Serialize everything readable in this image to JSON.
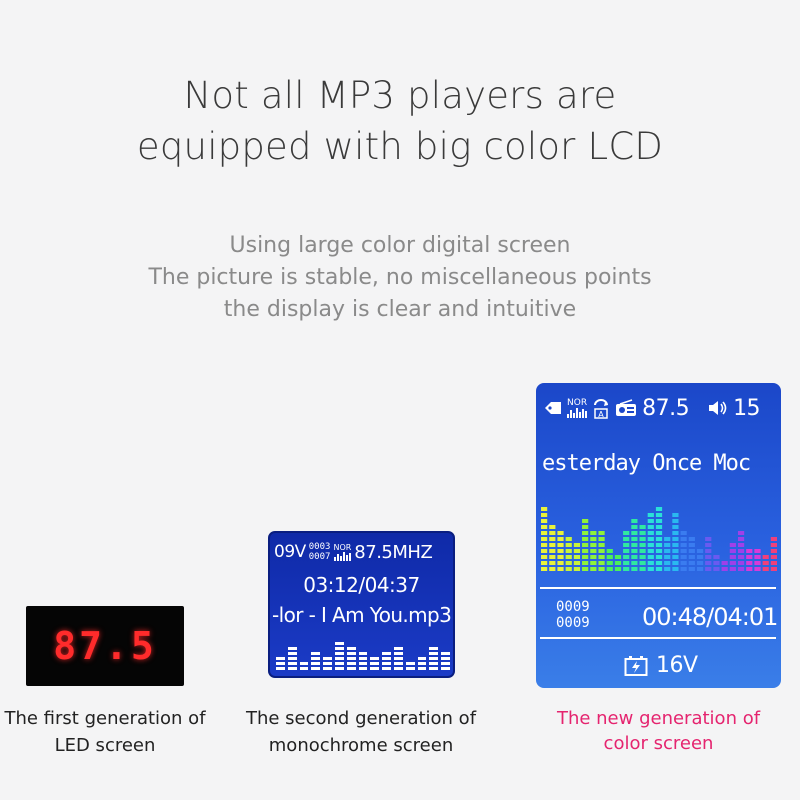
{
  "headline": {
    "line1": "Not all MP3 players are",
    "line2": "equipped with big color LCD"
  },
  "subtitle": {
    "line1": "Using large color digital screen",
    "line2": "The picture is stable, no miscellaneous points",
    "line3": "the display is clear and intuitive"
  },
  "led_screen": {
    "value": "87.5",
    "color": "#ff2b2b",
    "caption_line1": "The first generation of",
    "caption_line2": "LED screen"
  },
  "mono_screen": {
    "volume": "09V",
    "counter_top": "0003",
    "counter_bottom": "0007",
    "eq_label": "NOR",
    "frequency": "87.5MHZ",
    "time": "03:12/04:37",
    "track_title": "-lor - I Am You.mp3",
    "spectrum_levels": [
      3,
      5,
      2,
      4,
      3,
      6,
      5,
      4,
      3,
      4,
      5,
      2,
      3,
      5,
      4
    ],
    "caption_line1": "The second generation of",
    "caption_line2": "monochrome screen"
  },
  "color_screen": {
    "eq_label": "NOR",
    "frequency": "87.5",
    "volume": "15",
    "track_title": "esterday Once Moc",
    "spectrum_levels": [
      11,
      8,
      7,
      6,
      5,
      9,
      7,
      7,
      4,
      3,
      7,
      9,
      8,
      10,
      11,
      6,
      10,
      7,
      6,
      4,
      6,
      3,
      2,
      5,
      7,
      4,
      4,
      3,
      6
    ],
    "spectrum_colors": [
      "#e8f23a",
      "#c9f23a",
      "#8ff23a",
      "#4cf05a",
      "#30e8a0",
      "#2ae0d8",
      "#2ab8f0",
      "#3a7cf0",
      "#6a5af0",
      "#a040e8",
      "#d83ad8",
      "#f0407a"
    ],
    "counter_top": "0009",
    "counter_bottom": "0009",
    "time": "00:48/04:01",
    "voltage": "16V",
    "caption_line1": "The new generation of",
    "caption_line2": "color screen",
    "caption_color": "#e5246f"
  }
}
